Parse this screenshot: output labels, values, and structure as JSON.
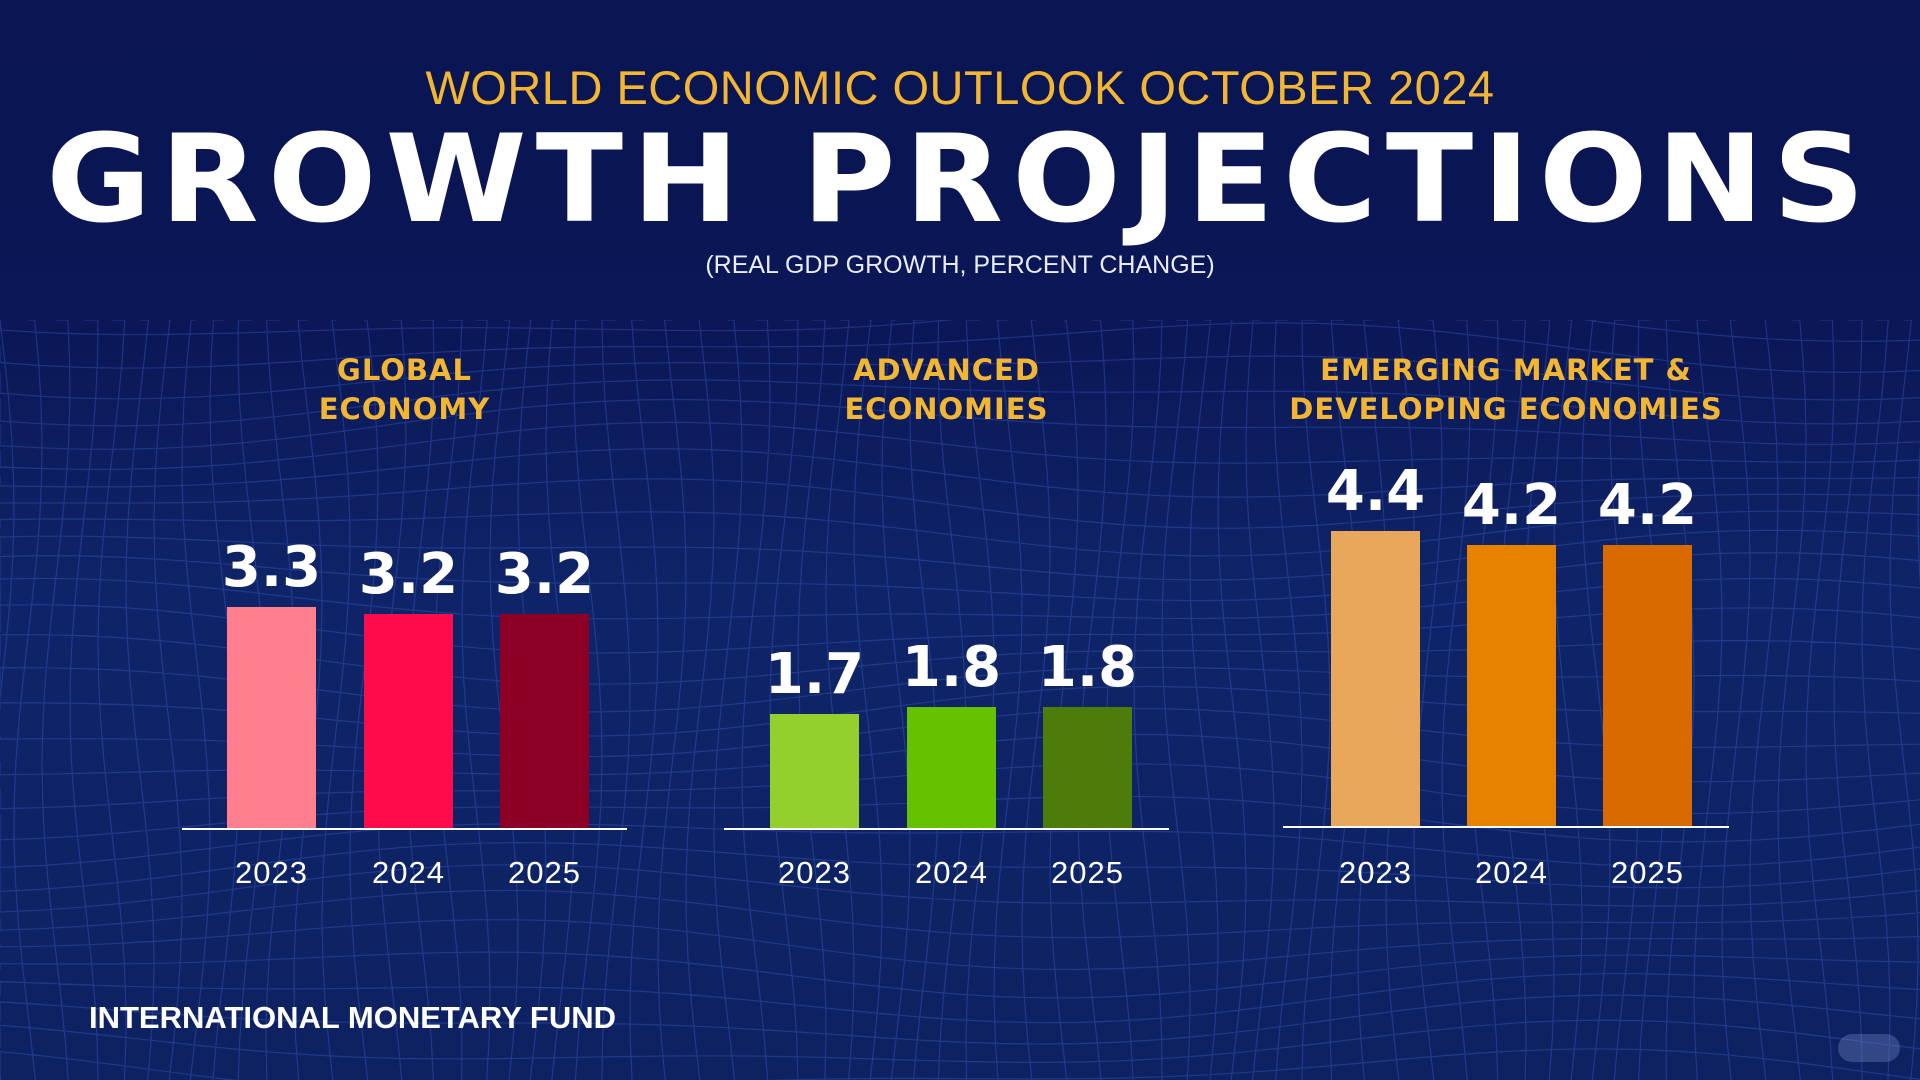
{
  "header": {
    "kicker": "WORLD ECONOMIC OUTLOOK OCTOBER 2024",
    "title": "GROWTH PROJECTIONS",
    "subtitle": "(REAL GDP GROWTH, PERCENT CHANGE)"
  },
  "footer": "INTERNATIONAL MONETARY FUND",
  "chart_data": [
    {
      "type": "bar",
      "title_lines": [
        "GLOBAL",
        "ECONOMY"
      ],
      "categories": [
        "2023",
        "2024",
        "2025"
      ],
      "values": [
        3.3,
        3.2,
        3.2
      ],
      "value_labels": [
        "3.3",
        "3.2",
        "3.2"
      ],
      "colors": [
        "#ff7f8f",
        "#ff0a4a",
        "#8c0026"
      ]
    },
    {
      "type": "bar",
      "title_lines": [
        "ADVANCED",
        "ECONOMIES"
      ],
      "categories": [
        "2023",
        "2024",
        "2025"
      ],
      "values": [
        1.7,
        1.8,
        1.8
      ],
      "value_labels": [
        "1.7",
        "1.8",
        "1.8"
      ],
      "colors": [
        "#93d02e",
        "#66c200",
        "#4e7c0a"
      ]
    },
    {
      "type": "bar",
      "title_lines": [
        "EMERGING MARKET &",
        "DEVELOPING ECONOMIES"
      ],
      "categories": [
        "2023",
        "2024",
        "2025"
      ],
      "values": [
        4.4,
        4.2,
        4.2
      ],
      "value_labels": [
        "4.4",
        "4.2",
        "4.2"
      ],
      "colors": [
        "#e9a75c",
        "#e68200",
        "#d86a00"
      ]
    }
  ]
}
